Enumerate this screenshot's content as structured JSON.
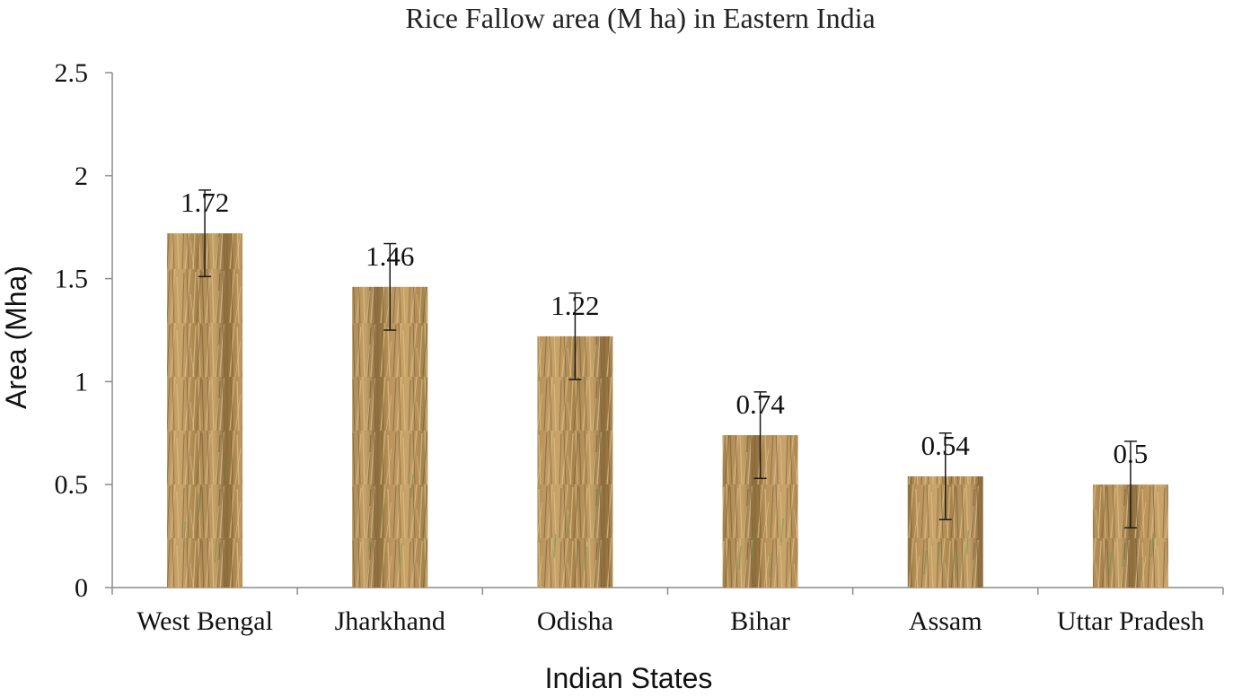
{
  "chart_data": {
    "type": "bar",
    "title": "Rice Fallow area (M ha) in Eastern India",
    "xlabel": "Indian States",
    "ylabel": "Area (Mha)",
    "categories": [
      "West Bengal",
      "Jharkhand",
      "Odisha",
      "Bihar",
      "Assam",
      "Uttar Pradesh"
    ],
    "values": [
      1.72,
      1.46,
      1.22,
      0.74,
      0.54,
      0.5
    ],
    "data_labels": [
      "1.72",
      "1.46",
      "1.22",
      "0.74",
      "0.54",
      "0.5"
    ],
    "error": 0.21,
    "ylim": [
      0,
      2.5
    ],
    "yticks": [
      0,
      0.5,
      1,
      1.5,
      2,
      2.5
    ],
    "ytick_labels": [
      "0",
      "0.5",
      "1",
      "1.5",
      "2",
      "2.5"
    ],
    "grid": false,
    "legend": "none",
    "bar_texture": "dry-straw-field",
    "colors": {
      "bar_base": "#b08b4e",
      "bar_light": "#d3b07a",
      "bar_dark": "#6e5530",
      "bar_green": "#6f8f4a",
      "axis": "#8c8c8c",
      "error_bar": "#1a1a1a",
      "text": "#111111"
    }
  }
}
